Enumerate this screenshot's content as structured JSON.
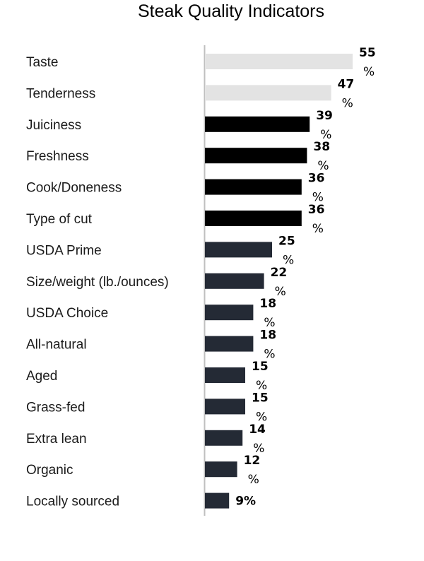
{
  "chart_data": {
    "type": "bar",
    "orientation": "horizontal",
    "title": "Steak Quality Indicators",
    "categories": [
      "Taste",
      "Tenderness",
      "Juiciness",
      "Freshness",
      "Cook/Doneness",
      "Type of cut",
      "USDA Prime",
      "Size/weight (lb./ounces)",
      "USDA Choice",
      "All-natural",
      "Aged",
      "Grass-fed",
      "Extra lean",
      "Organic",
      "Locally sourced"
    ],
    "values": [
      55,
      47,
      39,
      38,
      36,
      36,
      25,
      22,
      18,
      18,
      15,
      15,
      14,
      12,
      9
    ],
    "value_suffix": "%",
    "bar_colors": [
      "#e3e3e3",
      "#e3e3e3",
      "#000000",
      "#000000",
      "#000000",
      "#000000",
      "#242a35",
      "#242a35",
      "#242a35",
      "#242a35",
      "#242a35",
      "#242a35",
      "#242a35",
      "#242a35",
      "#242a35"
    ],
    "xlim": [
      0,
      55
    ],
    "grid": false,
    "legend": "none",
    "axis_line_color": "#bfbfbf"
  }
}
